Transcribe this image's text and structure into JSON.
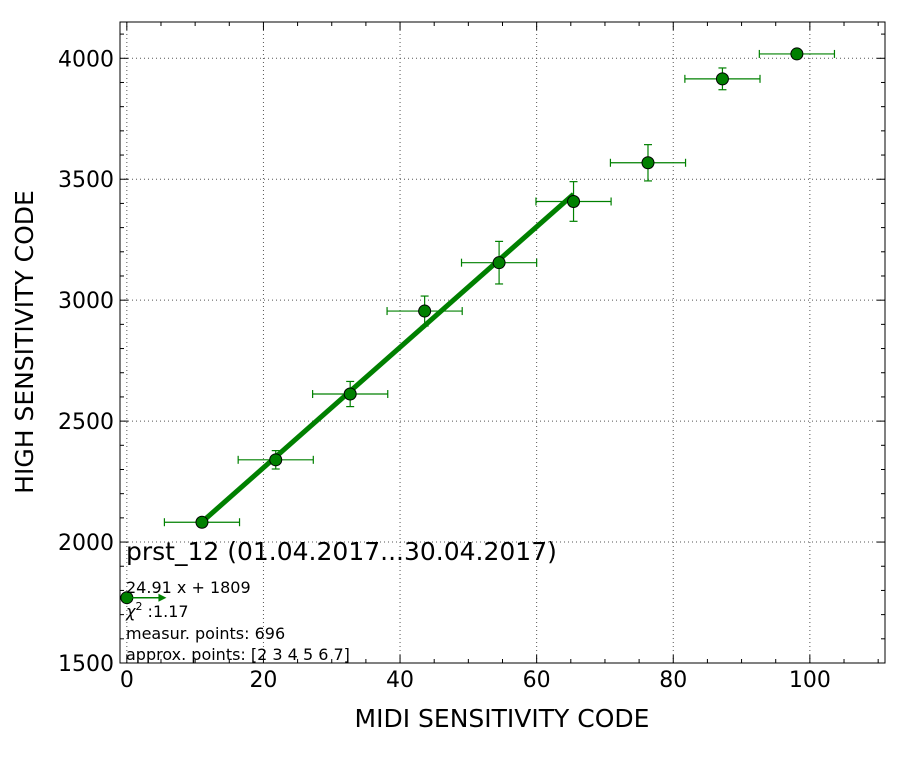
{
  "chart_data": {
    "type": "scatter",
    "xlabel": "MIDI SENSITIVITY CODE",
    "ylabel": "HIGH SENSITIVITY CODE",
    "xlim": [
      -1,
      111
    ],
    "ylim": [
      1500,
      4150
    ],
    "xticks": [
      0,
      20,
      40,
      60,
      80,
      100
    ],
    "yticks": [
      1500,
      2000,
      2500,
      3000,
      3500,
      4000
    ],
    "grid": true,
    "colors": {
      "marker": "#008000",
      "fit_line": "#008000",
      "error_bar": "#008000",
      "grid": "#555555"
    },
    "series": [
      {
        "type": "scatter-errorbar",
        "points": [
          {
            "x": 0,
            "y": 1770,
            "xerr_lo": 0,
            "xerr_hi": 0,
            "yerr": 0
          },
          {
            "x": 11,
            "y": 2082,
            "xerr_lo": 5.5,
            "xerr_hi": 5.5,
            "yerr": 12
          },
          {
            "x": 21.8,
            "y": 2340,
            "xerr_lo": 5.5,
            "xerr_hi": 5.5,
            "yerr": 38
          },
          {
            "x": 32.7,
            "y": 2612,
            "xerr_lo": 5.5,
            "xerr_hi": 5.5,
            "yerr": 52
          },
          {
            "x": 43.6,
            "y": 2955,
            "xerr_lo": 5.5,
            "xerr_hi": 5.5,
            "yerr": 62
          },
          {
            "x": 54.5,
            "y": 3155,
            "xerr_lo": 5.5,
            "xerr_hi": 5.5,
            "yerr": 88
          },
          {
            "x": 65.4,
            "y": 3408,
            "xerr_lo": 5.5,
            "xerr_hi": 5.5,
            "yerr": 82
          },
          {
            "x": 76.3,
            "y": 3568,
            "xerr_lo": 5.5,
            "xerr_hi": 5.5,
            "yerr": 75
          },
          {
            "x": 87.2,
            "y": 3915,
            "xerr_lo": 5.5,
            "xerr_hi": 5.5,
            "yerr": 45
          },
          {
            "x": 98.1,
            "y": 4018,
            "xerr_lo": 5.5,
            "xerr_hi": 5.5,
            "yerr": 15
          }
        ]
      },
      {
        "type": "fit-line",
        "slope": 24.91,
        "intercept": 1809,
        "x_range": [
          11,
          65.4
        ]
      }
    ],
    "annotations": {
      "title": "prst_12 (01.04.2017...30.04.2017)",
      "fit_equation": "24.91 x + 1809",
      "chi2_label": "χ",
      "chi2_sup": "2",
      "chi2_value": " :1.17",
      "measur_points": "measur. points: 696",
      "approx_points": "approx. points: [2 3 4 5 6 7]",
      "arrow_from": {
        "x": 0,
        "y": 1770
      },
      "arrow_to": {
        "x": 5.8,
        "y": 1770
      }
    }
  }
}
